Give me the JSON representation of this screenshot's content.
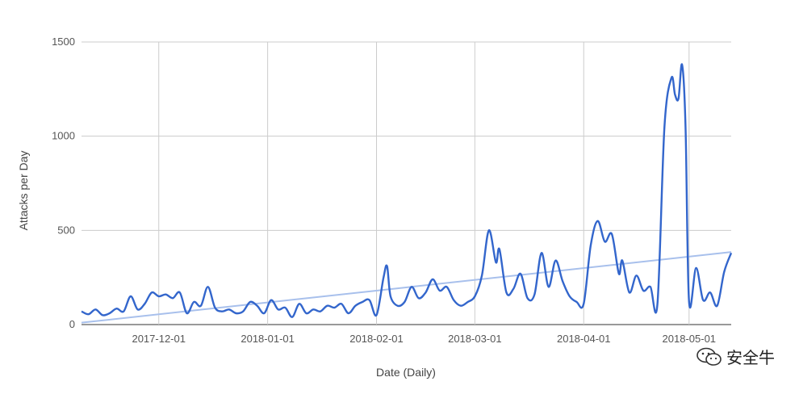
{
  "colors": {
    "series": "#3366cc",
    "trend": "#a8c0ec",
    "grid": "#cccccc",
    "text": "#555555"
  },
  "watermark": {
    "text": "安全牛",
    "icon": "wechat-icon"
  },
  "chart_data": {
    "type": "line",
    "xlabel": "Date (Daily)",
    "ylabel": "Attacks per Day",
    "ylim": [
      0,
      1500
    ],
    "yticks": [
      0,
      500,
      1000,
      1500
    ],
    "xlim": [
      "2017-11-09",
      "2018-05-13"
    ],
    "xticks": [
      {
        "date": "2017-12-01",
        "label": "2017-12-01"
      },
      {
        "date": "2018-01-01",
        "label": "2018-01-01"
      },
      {
        "date": "2018-02-01",
        "label": "2018-02-01"
      },
      {
        "date": "2018-03-01",
        "label": "2018-03-01"
      },
      {
        "date": "2018-04-01",
        "label": "2018-04-01"
      },
      {
        "date": "2018-05-01",
        "label": "2018-05-01"
      }
    ],
    "grid": true,
    "legend": "none",
    "series": [
      {
        "style": "line",
        "x": [
          "2017-11-09",
          "2017-11-11",
          "2017-11-13",
          "2017-11-15",
          "2017-11-17",
          "2017-11-19",
          "2017-11-21",
          "2017-11-23",
          "2017-11-25",
          "2017-11-27",
          "2017-11-29",
          "2017-12-01",
          "2017-12-03",
          "2017-12-05",
          "2017-12-07",
          "2017-12-09",
          "2017-12-11",
          "2017-12-13",
          "2017-12-15",
          "2017-12-17",
          "2017-12-19",
          "2017-12-21",
          "2017-12-23",
          "2017-12-25",
          "2017-12-27",
          "2017-12-29",
          "2017-12-31",
          "2018-01-02",
          "2018-01-04",
          "2018-01-06",
          "2018-01-08",
          "2018-01-10",
          "2018-01-12",
          "2018-01-14",
          "2018-01-16",
          "2018-01-18",
          "2018-01-20",
          "2018-01-22",
          "2018-01-24",
          "2018-01-26",
          "2018-01-28",
          "2018-01-30",
          "2018-02-01",
          "2018-02-03",
          "2018-02-04",
          "2018-02-05",
          "2018-02-07",
          "2018-02-09",
          "2018-02-11",
          "2018-02-13",
          "2018-02-15",
          "2018-02-17",
          "2018-02-19",
          "2018-02-21",
          "2018-02-23",
          "2018-02-25",
          "2018-02-27",
          "2018-03-01",
          "2018-03-03",
          "2018-03-05",
          "2018-03-07",
          "2018-03-08",
          "2018-03-10",
          "2018-03-12",
          "2018-03-14",
          "2018-03-16",
          "2018-03-18",
          "2018-03-20",
          "2018-03-22",
          "2018-03-24",
          "2018-03-26",
          "2018-03-28",
          "2018-03-30",
          "2018-04-01",
          "2018-04-03",
          "2018-04-05",
          "2018-04-07",
          "2018-04-09",
          "2018-04-11",
          "2018-04-12",
          "2018-04-14",
          "2018-04-16",
          "2018-04-18",
          "2018-04-20",
          "2018-04-22",
          "2018-04-24",
          "2018-04-26",
          "2018-04-27",
          "2018-04-28",
          "2018-04-29",
          "2018-04-30",
          "2018-05-01",
          "2018-05-03",
          "2018-05-05",
          "2018-05-07",
          "2018-05-09",
          "2018-05-11",
          "2018-05-13"
        ],
        "y": [
          70,
          55,
          80,
          50,
          60,
          85,
          70,
          150,
          80,
          110,
          170,
          150,
          160,
          140,
          170,
          60,
          120,
          100,
          200,
          90,
          70,
          80,
          60,
          70,
          120,
          100,
          60,
          130,
          80,
          90,
          40,
          110,
          60,
          80,
          70,
          100,
          90,
          110,
          60,
          100,
          120,
          130,
          50,
          250,
          310,
          150,
          100,
          120,
          200,
          140,
          170,
          240,
          180,
          200,
          130,
          100,
          120,
          150,
          260,
          500,
          330,
          400,
          170,
          190,
          270,
          140,
          160,
          380,
          200,
          340,
          230,
          150,
          120,
          110,
          420,
          550,
          440,
          480,
          270,
          340,
          170,
          260,
          180,
          200,
          110,
          1050,
          1310,
          1220,
          1200,
          1380,
          1050,
          120,
          300,
          130,
          170,
          100,
          280,
          380
        ]
      }
    ],
    "trendline": {
      "style": "linear",
      "start": 10,
      "end": 385
    }
  }
}
